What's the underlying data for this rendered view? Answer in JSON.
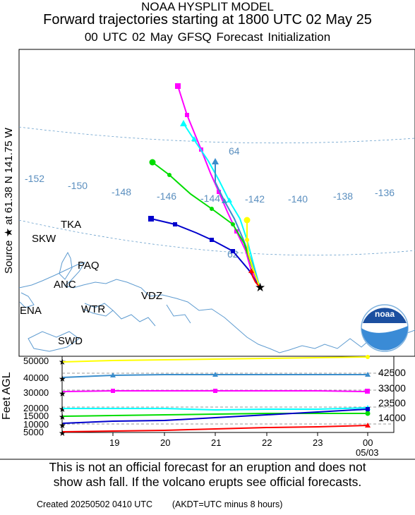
{
  "header": {
    "line1": "NOAA HYSPLIT MODEL",
    "line2": "Forward trajectories starting at 1800 UTC 02 May 25",
    "line3": "00 UTC 02 May     GFSQ  Forecast Initialization"
  },
  "side_label": "Source ★ at   61.38 N  141.75 W",
  "map": {
    "longitude_labels": [
      "-152",
      "-150",
      "-148",
      "-146",
      "-144",
      "-142",
      "-140",
      "-138",
      "-136"
    ],
    "latitude_label_partial": "64",
    "partial_label_62": "62",
    "places": [
      "TKA",
      "SKW",
      "PAQ",
      "ANC",
      "ENA",
      "WTR",
      "VDZ",
      "SWD"
    ],
    "logo_text": "noaa",
    "source_marker": "star"
  },
  "height_panel": {
    "ylabel": "Feet AGL",
    "left_ticks": [
      "50000",
      "40000",
      "30000",
      "20000",
      "15000",
      "10000",
      "5000"
    ],
    "start_heights_ft": [
      "42500",
      "33000",
      "23500",
      "14000"
    ],
    "time_ticks": [
      "19",
      "20",
      "21",
      "22",
      "23",
      "00"
    ],
    "date_label": "05/03"
  },
  "series": [
    {
      "color": "#ff0000",
      "marker": "triangle"
    },
    {
      "color": "#0000cc",
      "marker": "square"
    },
    {
      "color": "#00dd00",
      "marker": "circle"
    },
    {
      "color": "#00ffff",
      "marker": "triangle"
    },
    {
      "color": "#ff00ff",
      "marker": "square"
    },
    {
      "color": "#3b8ecc",
      "marker": "triangle"
    },
    {
      "color": "#ffff00",
      "marker": "circle"
    }
  ],
  "disclaimer": {
    "line1": "This is not an official forecast for an eruption and does not",
    "line2": "show ash fall. If the volcano erupts see official forecasts."
  },
  "footer": {
    "created": "Created 20250502 0410 UTC",
    "note": "(AKDT=UTC minus 8 hours)"
  }
}
